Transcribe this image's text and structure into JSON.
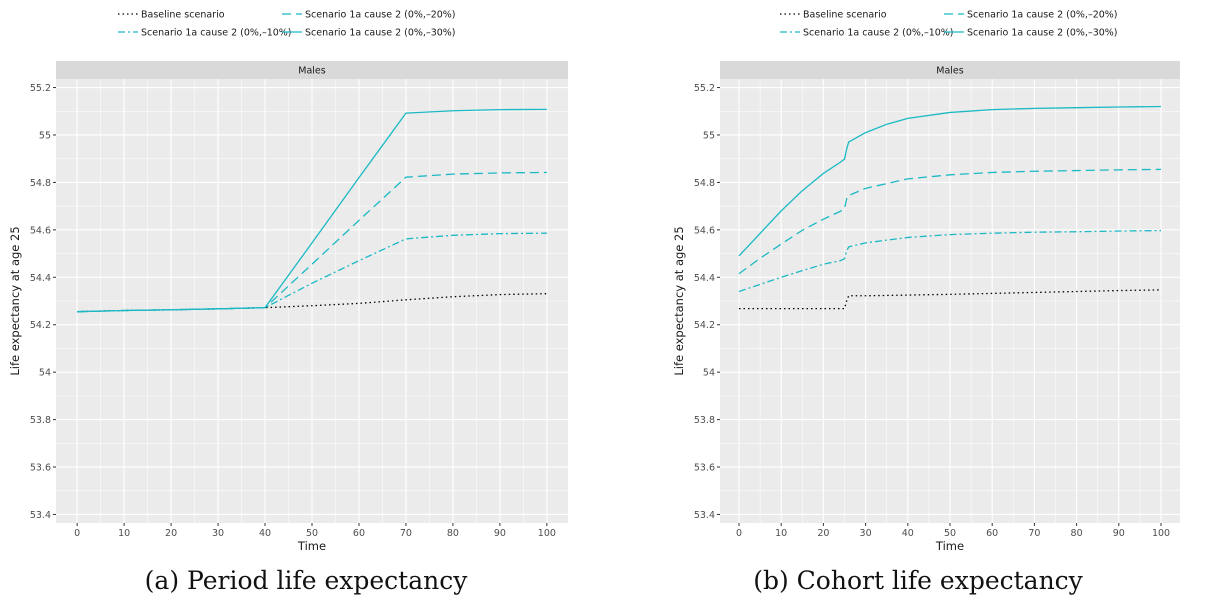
{
  "legend": {
    "entries": [
      {
        "label": "Baseline scenario",
        "color": "#000000",
        "dash": "1.5 3"
      },
      {
        "label": "Scenario 1a  cause 2 (0%,–10%)",
        "color": "#1ab9c4",
        "dash": "7 3 2 3"
      },
      {
        "label": "Scenario 1a  cause 2 (0%,–20%)",
        "color": "#1ab9c4",
        "dash": "9 5"
      },
      {
        "label": "Scenario 1a  cause 2 (0%,–30%)",
        "color": "#1ab9c4",
        "dash": ""
      }
    ]
  },
  "colors": {
    "panel_bg": "#ebebeb",
    "strip_bg": "#d9d9d9",
    "grid": "#ffffff",
    "teal": "#1ab9c4"
  },
  "chart_data": [
    {
      "type": "line",
      "caption": "(a) Period life expectancy",
      "strip": "Males",
      "xlabel": "Time",
      "ylabel": "Life expectancy at age 25",
      "xlim": [
        0,
        100
      ],
      "ylim": [
        53.4,
        55.2
      ],
      "xticks": [
        0,
        10,
        20,
        30,
        40,
        50,
        60,
        70,
        80,
        90,
        100
      ],
      "yticks": [
        53.4,
        53.6,
        53.8,
        54,
        54.2,
        54.4,
        54.6,
        54.8,
        55,
        55.2
      ],
      "ytick_labels": [
        "53.4",
        "53.6",
        "53.8",
        "54",
        "54.2",
        "54.4",
        "54.6",
        "54.8",
        "55",
        "55.2"
      ],
      "series": [
        {
          "name": "Baseline scenario",
          "x": [
            0,
            10,
            20,
            30,
            40,
            50,
            60,
            70,
            80,
            90,
            100
          ],
          "y": [
            54.255,
            54.26,
            54.263,
            54.267,
            54.272,
            54.28,
            54.29,
            54.305,
            54.318,
            54.327,
            54.331
          ]
        },
        {
          "name": "Scenario 1a  cause 2 (0%,–10%)",
          "x": [
            0,
            10,
            20,
            30,
            40,
            50,
            60,
            70,
            80,
            90,
            100
          ],
          "y": [
            54.255,
            54.26,
            54.263,
            54.267,
            54.272,
            54.375,
            54.47,
            54.562,
            54.577,
            54.584,
            54.586
          ]
        },
        {
          "name": "Scenario 1a  cause 2 (0%,–20%)",
          "x": [
            0,
            10,
            20,
            30,
            40,
            50,
            60,
            70,
            80,
            90,
            100
          ],
          "y": [
            54.255,
            54.26,
            54.263,
            54.267,
            54.272,
            54.455,
            54.64,
            54.822,
            54.835,
            54.84,
            54.842
          ]
        },
        {
          "name": "Scenario 1a  cause 2 (0%,–30%)",
          "x": [
            0,
            10,
            20,
            30,
            40,
            50,
            60,
            70,
            80,
            90,
            100
          ],
          "y": [
            54.255,
            54.26,
            54.263,
            54.267,
            54.272,
            54.545,
            54.82,
            55.092,
            55.102,
            55.107,
            55.108
          ]
        }
      ]
    },
    {
      "type": "line",
      "caption": "(b) Cohort life expectancy",
      "strip": "Males",
      "xlabel": "Time",
      "ylabel": "Life expectancy at age 25",
      "xlim": [
        0,
        100
      ],
      "ylim": [
        53.4,
        55.2
      ],
      "xticks": [
        0,
        10,
        20,
        30,
        40,
        50,
        60,
        70,
        80,
        90,
        100
      ],
      "yticks": [
        53.4,
        53.6,
        53.8,
        54,
        54.2,
        54.4,
        54.6,
        54.8,
        55,
        55.2
      ],
      "ytick_labels": [
        "53.4",
        "53.6",
        "53.8",
        "54",
        "54.2",
        "54.4",
        "54.6",
        "54.8",
        "55",
        "55.2"
      ],
      "series": [
        {
          "name": "Baseline scenario",
          "x": [
            0,
            10,
            20,
            25,
            25.5,
            26,
            30,
            40,
            50,
            60,
            70,
            80,
            90,
            100
          ],
          "y": [
            54.268,
            54.268,
            54.268,
            54.268,
            54.3,
            54.322,
            54.322,
            54.325,
            54.328,
            54.332,
            54.336,
            54.34,
            54.344,
            54.347
          ]
        },
        {
          "name": "Scenario 1a  cause 2 (0%,–10%)",
          "x": [
            0,
            5,
            10,
            15,
            20,
            24,
            25,
            25.5,
            26,
            30,
            40,
            50,
            60,
            70,
            80,
            90,
            100
          ],
          "y": [
            54.34,
            54.37,
            54.4,
            54.428,
            54.455,
            54.47,
            54.478,
            54.51,
            54.528,
            54.545,
            54.568,
            54.58,
            54.586,
            54.59,
            54.592,
            54.595,
            54.597
          ]
        },
        {
          "name": "Scenario 1a  cause 2 (0%,–20%)",
          "x": [
            0,
            5,
            10,
            15,
            20,
            24,
            25,
            25.5,
            26,
            30,
            40,
            50,
            60,
            70,
            80,
            90,
            100
          ],
          "y": [
            54.415,
            54.48,
            54.54,
            54.598,
            54.645,
            54.678,
            54.69,
            54.73,
            54.745,
            54.775,
            54.815,
            54.832,
            54.842,
            54.847,
            54.85,
            54.853,
            54.855
          ]
        },
        {
          "name": "Scenario 1a  cause 2 (0%,–30%)",
          "x": [
            0,
            5,
            10,
            15,
            20,
            24,
            25,
            25.5,
            26,
            30,
            35,
            40,
            50,
            60,
            70,
            80,
            90,
            100
          ],
          "y": [
            54.49,
            54.585,
            54.68,
            54.765,
            54.838,
            54.885,
            54.898,
            54.94,
            54.97,
            55.01,
            55.045,
            55.07,
            55.095,
            55.107,
            55.112,
            55.115,
            55.118,
            55.12
          ]
        }
      ]
    }
  ]
}
